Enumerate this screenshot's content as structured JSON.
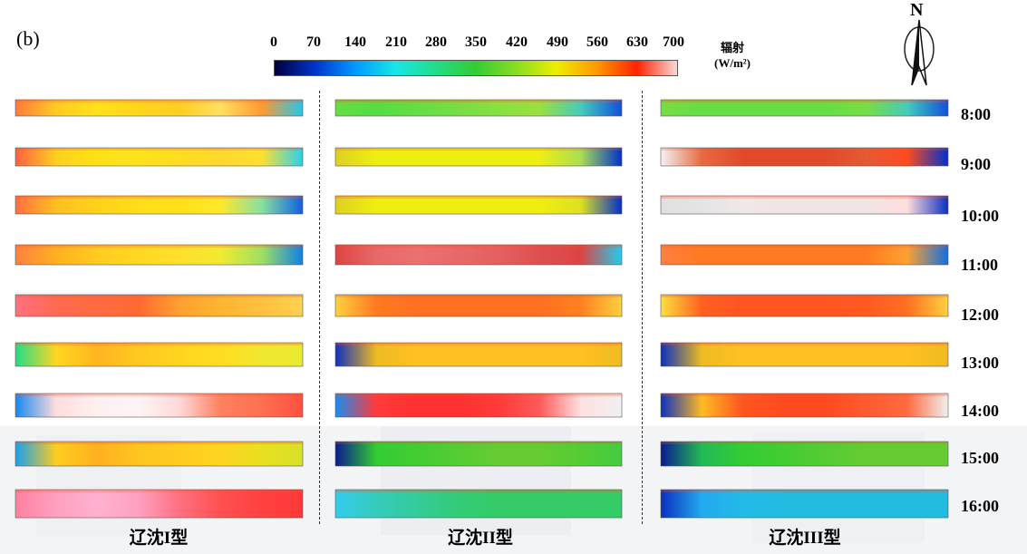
{
  "panel_label": "(b)",
  "colors": {
    "stops": [
      "#00003a",
      "#0033cc",
      "#0099ff",
      "#19e6e6",
      "#22dd88",
      "#33cc33",
      "#88dd22",
      "#eeee00",
      "#ff9900",
      "#ff2200",
      "#f8d8d8"
    ]
  },
  "chart_data": {
    "type": "heatmap",
    "colorbar": {
      "title": "辐射",
      "unit": "(W/m²)",
      "ticks": [
        "0",
        "70",
        "140",
        "210",
        "280",
        "350",
        "420",
        "490",
        "560",
        "630",
        "700"
      ],
      "range": [
        0,
        700
      ]
    },
    "compass": "N",
    "times": [
      "8:00",
      "9:00",
      "10:00",
      "11:00",
      "12:00",
      "13:00",
      "14:00",
      "15:00",
      "16:00"
    ],
    "columns": [
      "辽沈I型",
      "辽沈II型",
      "辽沈III型"
    ]
  }
}
